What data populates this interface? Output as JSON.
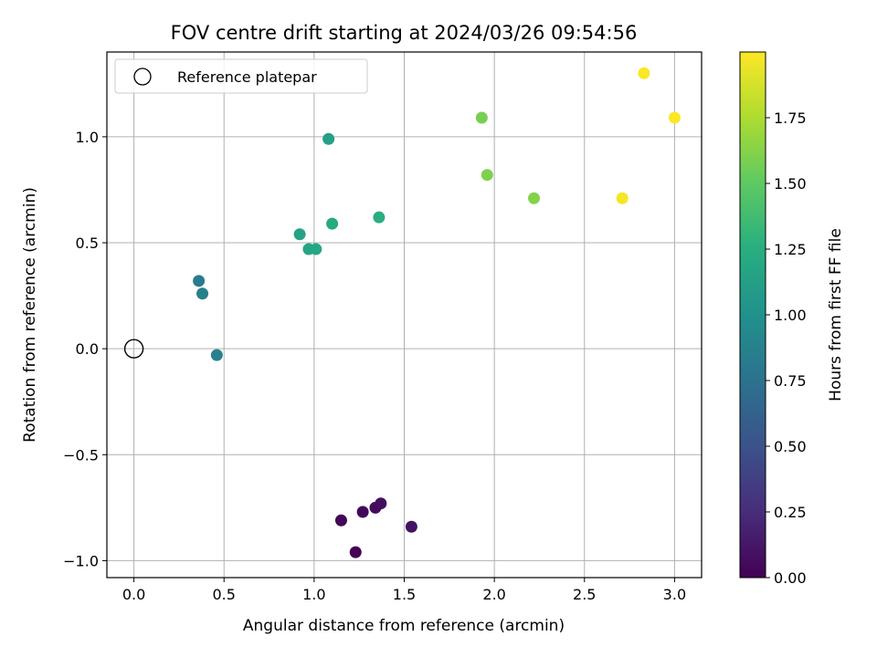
{
  "chart_data": {
    "type": "scatter",
    "title": "FOV centre drift starting at 2024/03/26 09:54:56",
    "xlabel": "Angular distance from reference (arcmin)",
    "ylabel": "Rotation from reference (arcmin)",
    "xlim": [
      -0.15,
      3.15
    ],
    "ylim": [
      -1.08,
      1.4
    ],
    "xticks": [
      0.0,
      0.5,
      1.0,
      1.5,
      2.0,
      2.5,
      3.0
    ],
    "xtick_labels": [
      "0.0",
      "0.5",
      "1.0",
      "1.5",
      "2.0",
      "2.5",
      "3.0"
    ],
    "yticks": [
      -1.0,
      -0.5,
      0.0,
      0.5,
      1.0
    ],
    "ytick_labels": [
      "−1.0",
      "−0.5",
      "0.0",
      "0.5",
      "1.0"
    ],
    "grid": true,
    "legend": {
      "placement": "top-left",
      "entries": [
        "Reference platepar"
      ]
    },
    "reference_point": {
      "x": 0.0,
      "y": 0.0
    },
    "colorbar": {
      "label": "Hours from first FF file",
      "colormap": "viridis",
      "range": [
        0.0,
        2.0
      ],
      "ticks": [
        0.0,
        0.25,
        0.5,
        0.75,
        1.0,
        1.25,
        1.5,
        1.75
      ],
      "tick_labels": [
        "0.00",
        "0.25",
        "0.50",
        "0.75",
        "1.00",
        "1.25",
        "1.50",
        "1.75"
      ]
    },
    "points": [
      {
        "x": 1.23,
        "y": -0.96,
        "hours": 0.0
      },
      {
        "x": 1.15,
        "y": -0.81,
        "hours": 0.02
      },
      {
        "x": 1.27,
        "y": -0.77,
        "hours": 0.04
      },
      {
        "x": 1.34,
        "y": -0.75,
        "hours": 0.06
      },
      {
        "x": 1.37,
        "y": -0.73,
        "hours": 0.08
      },
      {
        "x": 1.54,
        "y": -0.84,
        "hours": 0.1
      },
      {
        "x": 0.36,
        "y": 0.32,
        "hours": 0.83
      },
      {
        "x": 0.38,
        "y": 0.26,
        "hours": 0.85
      },
      {
        "x": 0.46,
        "y": -0.03,
        "hours": 0.87
      },
      {
        "x": 1.08,
        "y": 0.99,
        "hours": 1.13
      },
      {
        "x": 0.92,
        "y": 0.54,
        "hours": 1.15
      },
      {
        "x": 0.97,
        "y": 0.47,
        "hours": 1.17
      },
      {
        "x": 1.01,
        "y": 0.47,
        "hours": 1.19
      },
      {
        "x": 1.1,
        "y": 0.59,
        "hours": 1.21
      },
      {
        "x": 1.36,
        "y": 0.62,
        "hours": 1.25
      },
      {
        "x": 1.93,
        "y": 1.09,
        "hours": 1.58
      },
      {
        "x": 1.96,
        "y": 0.82,
        "hours": 1.6
      },
      {
        "x": 2.22,
        "y": 0.71,
        "hours": 1.62
      },
      {
        "x": 2.71,
        "y": 0.71,
        "hours": 1.97
      },
      {
        "x": 2.83,
        "y": 1.3,
        "hours": 1.99
      },
      {
        "x": 3.0,
        "y": 1.09,
        "hours": 2.0
      }
    ]
  }
}
